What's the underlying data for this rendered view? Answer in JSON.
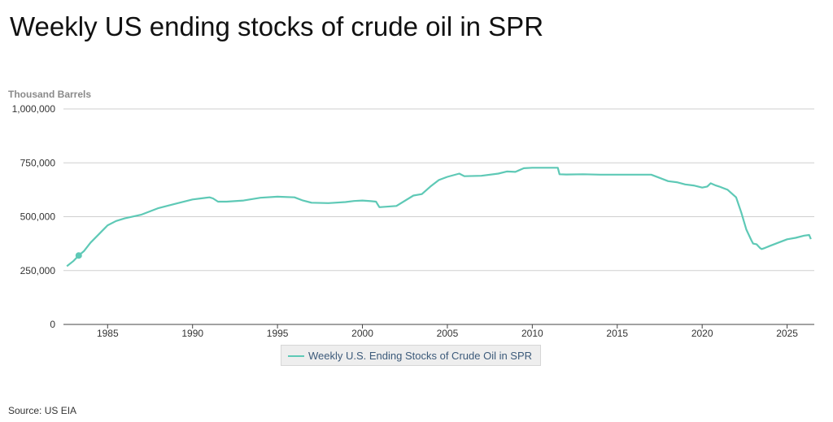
{
  "title": "Weekly US ending stocks of crude oil in SPR",
  "source": "Source: US EIA",
  "colors": {
    "series": "#5ec9b6",
    "grid": "#cfcfcf",
    "axis": "#444444"
  },
  "chart_data": {
    "type": "line",
    "ylabel": "Thousand Barrels",
    "ylim": [
      0,
      1000000
    ],
    "yticks": [
      0,
      250000,
      500000,
      750000,
      1000000
    ],
    "ytick_labels": [
      "0",
      "250,000",
      "500,000",
      "750,000",
      "1,000,000"
    ],
    "xlim": [
      1982.4,
      2026.6
    ],
    "xticks": [
      1985,
      1990,
      1995,
      2000,
      2005,
      2010,
      2015,
      2020,
      2025
    ],
    "xtick_labels": [
      "1985",
      "1990",
      "1995",
      "2000",
      "2005",
      "2010",
      "2015",
      "2020",
      "2025"
    ],
    "grid": true,
    "legend_position": "bottom-center",
    "marker": {
      "x": 1983.3,
      "y": 320000
    },
    "series": [
      {
        "name": "Weekly U.S. Ending Stocks of Crude Oil in SPR",
        "x": [
          1982.6,
          1983.0,
          1983.3,
          1983.6,
          1984.0,
          1984.5,
          1985.0,
          1985.5,
          1986.0,
          1987.0,
          1988.0,
          1989.0,
          1990.0,
          1990.5,
          1991.0,
          1991.2,
          1991.5,
          1992.0,
          1993.0,
          1994.0,
          1995.0,
          1996.0,
          1996.5,
          1997.0,
          1998.0,
          1999.0,
          1999.5,
          2000.0,
          2000.5,
          2000.8,
          2001.0,
          2002.0,
          2003.0,
          2003.5,
          2004.0,
          2004.5,
          2005.0,
          2005.7,
          2006.0,
          2007.0,
          2008.0,
          2008.5,
          2009.0,
          2009.5,
          2010.0,
          2011.0,
          2011.5,
          2011.6,
          2012.0,
          2013.0,
          2014.0,
          2015.0,
          2016.0,
          2017.0,
          2017.5,
          2018.0,
          2018.5,
          2019.0,
          2019.5,
          2020.0,
          2020.3,
          2020.5,
          2020.8,
          2021.0,
          2021.5,
          2022.0,
          2022.3,
          2022.6,
          2022.9,
          2023.0,
          2023.2,
          2023.4,
          2023.5,
          2023.7,
          2024.0,
          2024.5,
          2025.0,
          2025.5,
          2026.0,
          2026.3,
          2026.4
        ],
        "values": [
          270000,
          295000,
          320000,
          340000,
          380000,
          420000,
          460000,
          480000,
          492000,
          510000,
          540000,
          560000,
          580000,
          585000,
          590000,
          585000,
          570000,
          570000,
          575000,
          588000,
          593000,
          590000,
          575000,
          565000,
          563000,
          568000,
          573000,
          575000,
          572000,
          570000,
          544000,
          550000,
          598000,
          605000,
          640000,
          670000,
          685000,
          700000,
          688000,
          690000,
          700000,
          710000,
          708000,
          725000,
          727000,
          727000,
          727000,
          697000,
          696000,
          697000,
          695000,
          695000,
          695000,
          695000,
          680000,
          665000,
          660000,
          650000,
          645000,
          635000,
          640000,
          655000,
          645000,
          640000,
          625000,
          590000,
          520000,
          440000,
          390000,
          375000,
          372000,
          355000,
          350000,
          355000,
          365000,
          380000,
          395000,
          402000,
          412000,
          415000,
          396000
        ]
      }
    ]
  }
}
